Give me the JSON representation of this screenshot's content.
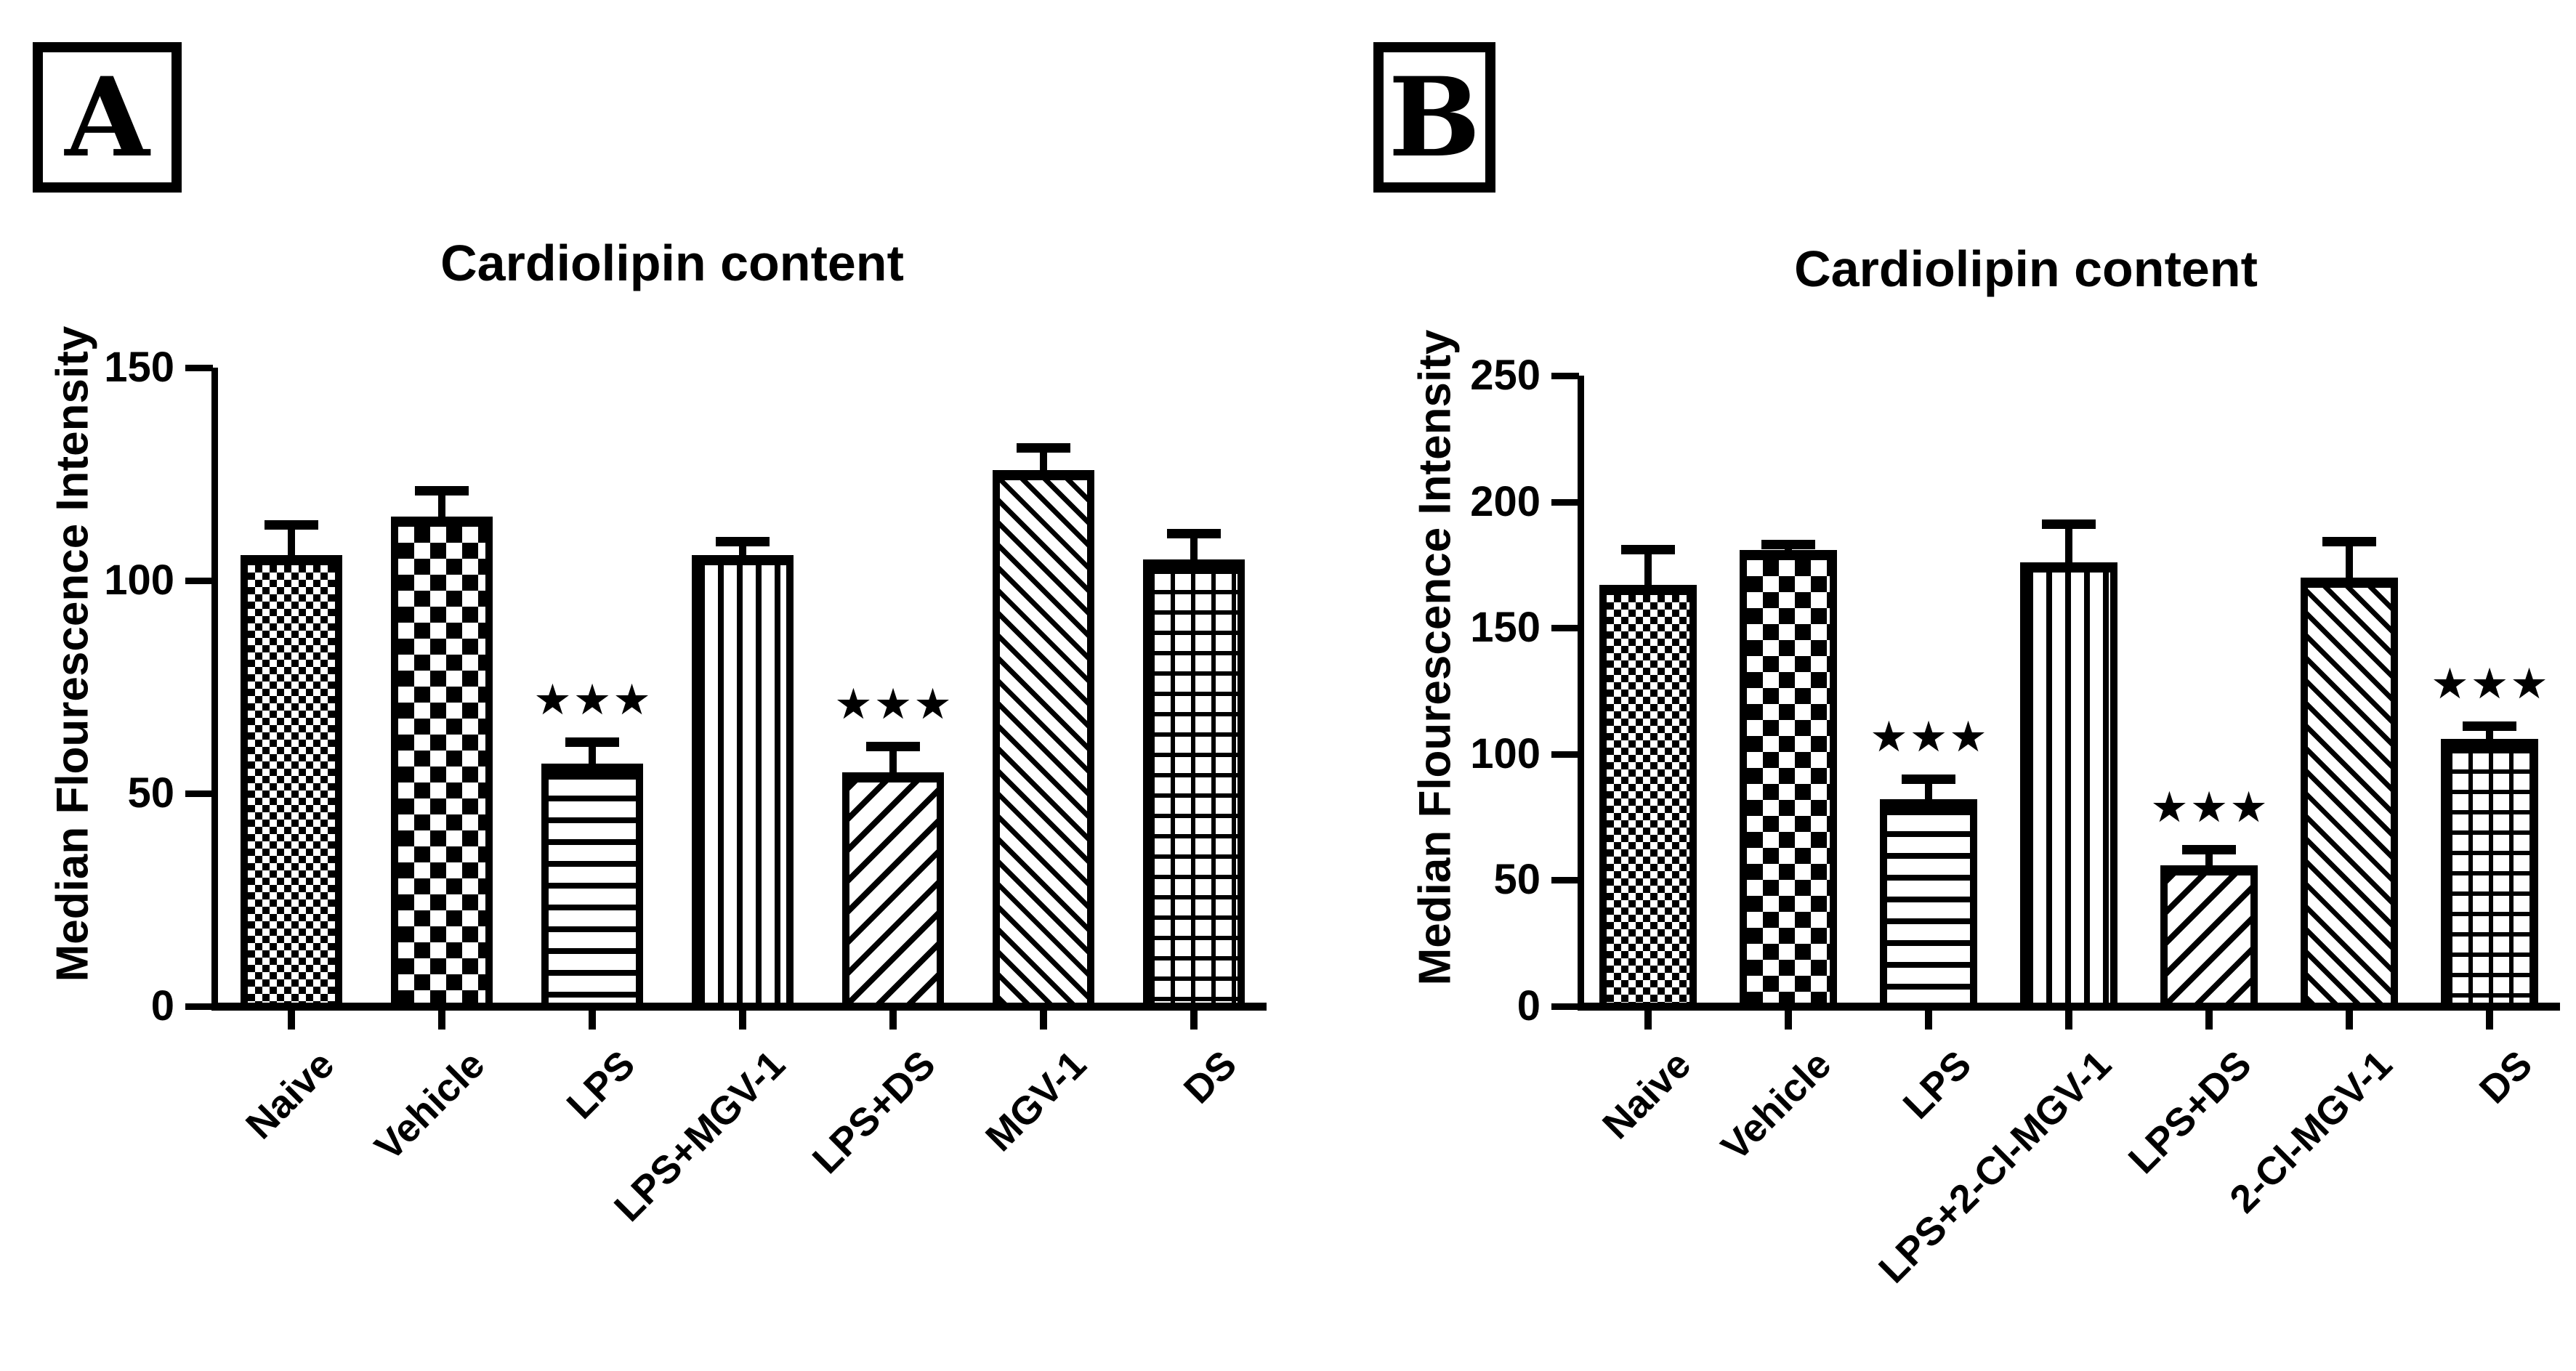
{
  "panels": [
    {
      "label": "A"
    },
    {
      "label": "B"
    }
  ],
  "chart_data": [
    {
      "type": "bar",
      "panel": "A",
      "title": "Cardiolipin content",
      "xlabel": "",
      "ylabel": "Median Flourescence Intensity",
      "ylim": [
        0,
        150
      ],
      "yticks": [
        0,
        50,
        100,
        150
      ],
      "grid": false,
      "legend": "none",
      "categories": [
        "Naive",
        "Vehicle",
        "LPS",
        "LPS+MGV-1",
        "LPS+DS",
        "MGV-1",
        "DS"
      ],
      "values": [
        106,
        115,
        57,
        106,
        55,
        126,
        105
      ],
      "errors": [
        7,
        6,
        5,
        3,
        6,
        5,
        6
      ],
      "significance": [
        "",
        "",
        "***",
        "",
        "***",
        "",
        ""
      ],
      "bar_patterns": [
        "fine-checkerboard",
        "coarse-checkerboard",
        "horizontal-stripes",
        "vertical-stripes",
        "forward-diagonal-stripes",
        "backward-diagonal-stripes",
        "grid-crosshatch"
      ],
      "bar_color": "#000000",
      "background_color": "#ffffff"
    },
    {
      "type": "bar",
      "panel": "B",
      "title": "Cardiolipin content",
      "xlabel": "",
      "ylabel": "Median Flourescence Intensity",
      "ylim": [
        0,
        250
      ],
      "yticks": [
        0,
        50,
        100,
        150,
        200,
        250
      ],
      "grid": false,
      "legend": "none",
      "categories": [
        "Naive",
        "Vehicle",
        "LPS",
        "LPS+2-Cl-MGV-1",
        "LPS+DS",
        "2-Cl-MGV-1",
        "DS"
      ],
      "values": [
        167,
        181,
        82,
        176,
        56,
        170,
        106
      ],
      "errors": [
        14,
        2,
        8,
        15,
        6,
        14,
        5
      ],
      "significance": [
        "",
        "",
        "***",
        "",
        "***",
        "",
        "***"
      ],
      "bar_patterns": [
        "fine-checkerboard",
        "coarse-checkerboard",
        "horizontal-stripes",
        "vertical-stripes",
        "forward-diagonal-stripes",
        "backward-diagonal-stripes",
        "grid-crosshatch"
      ],
      "bar_color": "#000000",
      "background_color": "#ffffff"
    }
  ]
}
